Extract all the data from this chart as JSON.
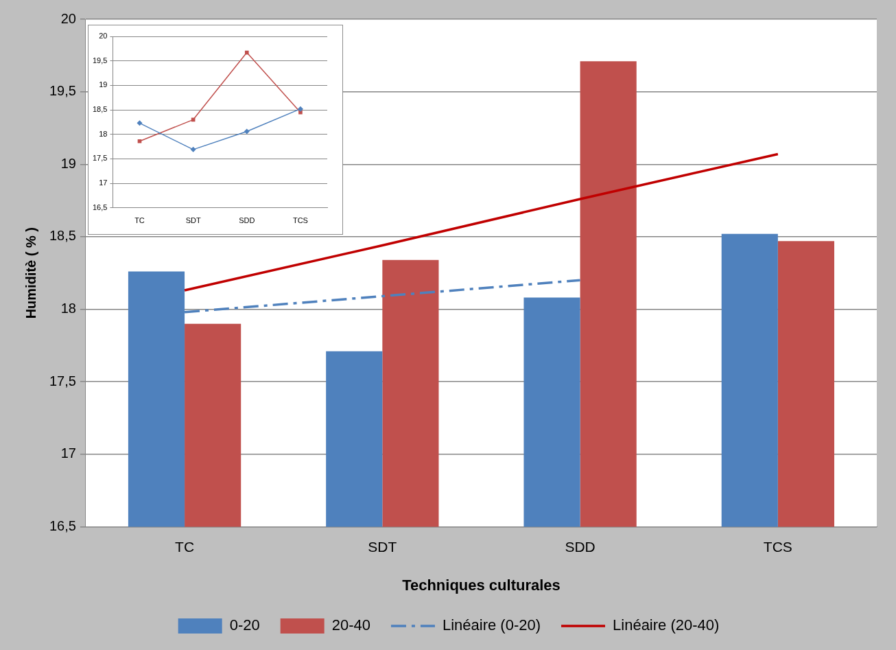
{
  "chart_data": [
    {
      "type": "bar",
      "xlabel": "Techniques culturales",
      "ylabel": "Humiditè ( % )",
      "categories": [
        "TC",
        "SDT",
        "SDD",
        "TCS"
      ],
      "series": [
        {
          "name": "0-20",
          "color": "#4f81bd",
          "values": [
            18.26,
            17.71,
            18.08,
            18.52
          ]
        },
        {
          "name": "20-40",
          "color": "#c0504d",
          "values": [
            17.9,
            18.34,
            19.71,
            18.47
          ]
        },
        {
          "name": "Linéaire (0-20)",
          "type": "line",
          "color": "#4f81bd",
          "line_style": "dashed",
          "marker": "none",
          "values": [
            17.98,
            18.09,
            18.2,
            null
          ]
        },
        {
          "name": "Linéaire (20-40)",
          "type": "line",
          "color": "#c00000",
          "line_style": "solid",
          "marker": "none",
          "values": [
            18.13,
            18.44,
            18.76,
            19.07
          ]
        }
      ],
      "ylim": [
        16.5,
        20
      ],
      "yticks": [
        {
          "value": 16.5,
          "label": "16,5"
        },
        17,
        {
          "value": 17.5,
          "label": "17,5"
        },
        18,
        {
          "value": 18.5,
          "label": "18,5"
        },
        19,
        {
          "value": 19.5,
          "label": "19,5"
        },
        20
      ],
      "grid": "y",
      "legend": "bottom"
    },
    {
      "type": "line",
      "categories": [
        "TC",
        "SDT",
        "SDD",
        "TCS"
      ],
      "series": [
        {
          "color": "#4f81bd",
          "marker": "diamond",
          "values": [
            18.23,
            17.69,
            18.06,
            18.52
          ]
        },
        {
          "color": "#c0504d",
          "marker": "square",
          "values": [
            17.86,
            18.3,
            19.67,
            18.45
          ]
        }
      ],
      "ylim": [
        16.5,
        20
      ],
      "yticks": [
        {
          "value": 16.5,
          "label": "16,5"
        },
        17,
        {
          "value": 17.5,
          "label": "17,5"
        },
        18,
        {
          "value": 18.5,
          "label": "18,5"
        },
        19,
        {
          "value": 19.5,
          "label": "19,5"
        },
        20
      ],
      "grid": "y"
    }
  ]
}
